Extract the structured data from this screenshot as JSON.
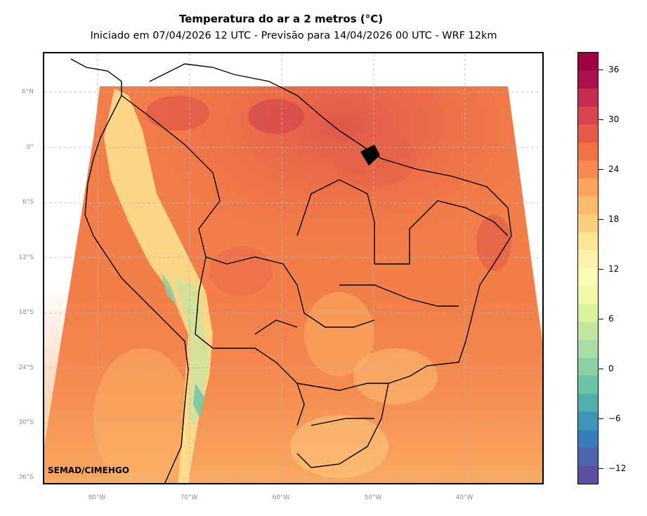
{
  "title": "Temperatura do ar a 2 metros (°C)",
  "subtitle": "Iniciado em 07/04/2026 12 UTC - Previsão para 14/04/2026 00 UTC - WRF 12km",
  "credit": "SEMAD/CIMEHGO",
  "lat_labels": [
    "6°N",
    "0°",
    "6°S",
    "12°S",
    "18°S",
    "24°S",
    "30°S",
    "36°S"
  ],
  "lon_labels": [
    "80°W",
    "70°W",
    "60°W",
    "50°W",
    "40°W"
  ],
  "colorbar": {
    "min": -14,
    "max": 38,
    "step": 2,
    "ticks": [
      "36",
      "30",
      "24",
      "18",
      "12",
      "6",
      "0",
      "−6",
      "−12"
    ],
    "colors": [
      "#5e4fa2",
      "#4c67af",
      "#3a7dbb",
      "#3e96b7",
      "#50aeae",
      "#6bc3a5",
      "#89d0a4",
      "#a7dca4",
      "#c2e69f",
      "#dbf19b",
      "#eef8a6",
      "#fbfdb7",
      "#fff2aa",
      "#fee593",
      "#fed07e",
      "#fdbb6b",
      "#fca35d",
      "#f88a4f",
      "#f17244",
      "#e75c49",
      "#d8454f",
      "#c42d4f",
      "#a8114a",
      "#9e0142"
    ]
  }
}
